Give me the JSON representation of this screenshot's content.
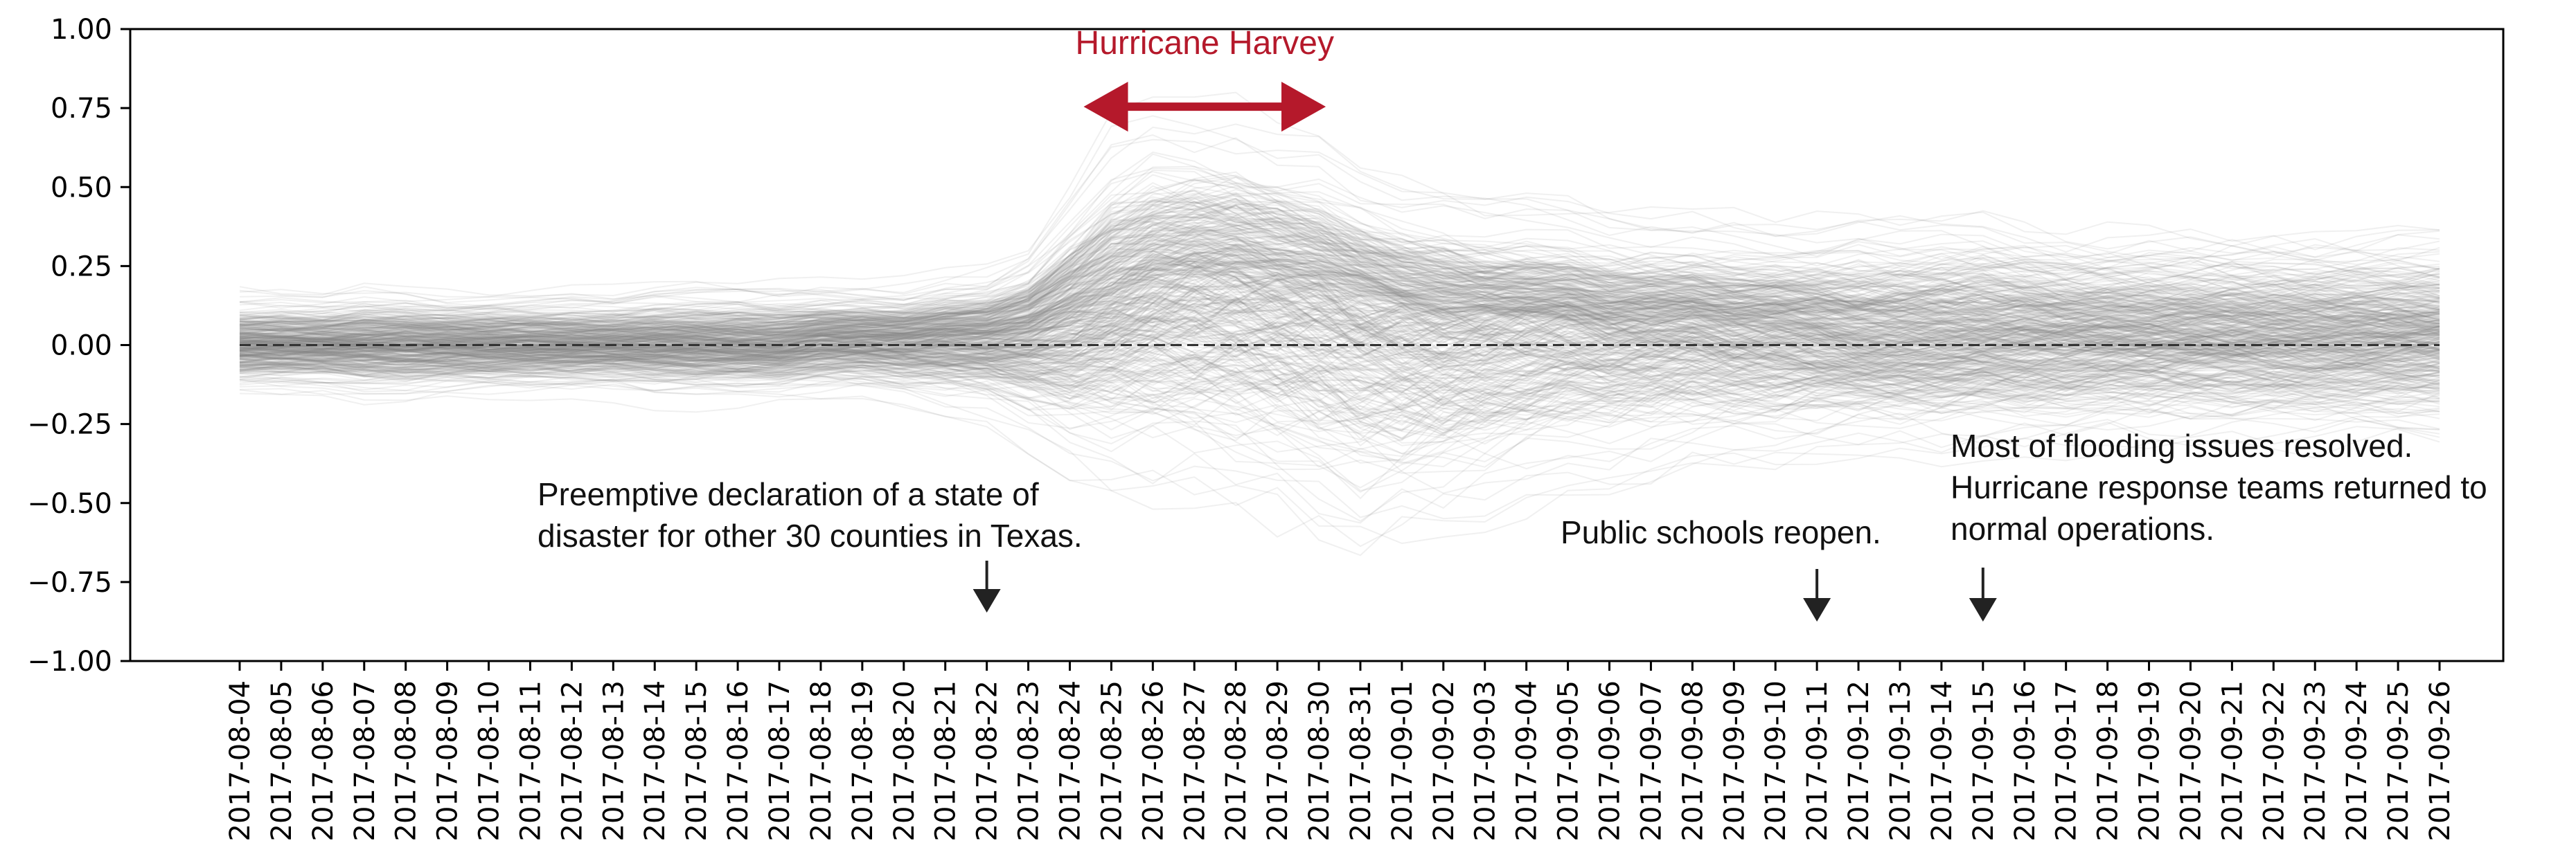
{
  "chart_data": {
    "type": "line",
    "title": "",
    "xlabel": "",
    "ylabel": "",
    "ylim": [
      -1.0,
      1.0
    ],
    "yticks": [
      "1.00",
      "0.75",
      "0.50",
      "0.25",
      "0.00",
      "−0.25",
      "−0.50",
      "−0.75",
      "−1.00"
    ],
    "ytick_values": [
      1.0,
      0.75,
      0.5,
      0.25,
      0.0,
      -0.25,
      -0.5,
      -0.75,
      -1.0
    ],
    "x": [
      "2017-08-04",
      "2017-08-05",
      "2017-08-06",
      "2017-08-07",
      "2017-08-08",
      "2017-08-09",
      "2017-08-10",
      "2017-08-11",
      "2017-08-12",
      "2017-08-13",
      "2017-08-14",
      "2017-08-15",
      "2017-08-16",
      "2017-08-17",
      "2017-08-18",
      "2017-08-19",
      "2017-08-20",
      "2017-08-21",
      "2017-08-22",
      "2017-08-23",
      "2017-08-24",
      "2017-08-25",
      "2017-08-26",
      "2017-08-27",
      "2017-08-28",
      "2017-08-29",
      "2017-08-30",
      "2017-08-31",
      "2017-09-01",
      "2017-09-02",
      "2017-09-03",
      "2017-09-04",
      "2017-09-05",
      "2017-09-06",
      "2017-09-07",
      "2017-09-08",
      "2017-09-09",
      "2017-09-10",
      "2017-09-11",
      "2017-09-12",
      "2017-09-13",
      "2017-09-14",
      "2017-09-15",
      "2017-09-16",
      "2017-09-17",
      "2017-09-18",
      "2017-09-19",
      "2017-09-20",
      "2017-09-21",
      "2017-09-22",
      "2017-09-23",
      "2017-09-24",
      "2017-09-25",
      "2017-09-26"
    ],
    "grid": false,
    "baseline": {
      "y": 0.0,
      "style": "dashed",
      "color": "#333333"
    },
    "series_style": {
      "color": "#808080",
      "opacity": 0.12
    },
    "envelope": {
      "upper": [
        0.2,
        0.2,
        0.2,
        0.22,
        0.22,
        0.2,
        0.2,
        0.2,
        0.2,
        0.2,
        0.22,
        0.22,
        0.22,
        0.22,
        0.22,
        0.22,
        0.22,
        0.25,
        0.27,
        0.35,
        0.55,
        0.75,
        0.82,
        0.82,
        0.8,
        0.75,
        0.7,
        0.6,
        0.55,
        0.55,
        0.5,
        0.5,
        0.48,
        0.45,
        0.45,
        0.45,
        0.45,
        0.45,
        0.45,
        0.48,
        0.48,
        0.5,
        0.5,
        0.48,
        0.45,
        0.45,
        0.45,
        0.45,
        0.45,
        0.45,
        0.45,
        0.45,
        0.45,
        0.45
      ],
      "lower": [
        -0.2,
        -0.2,
        -0.2,
        -0.22,
        -0.22,
        -0.2,
        -0.2,
        -0.2,
        -0.2,
        -0.2,
        -0.22,
        -0.22,
        -0.22,
        -0.22,
        -0.22,
        -0.22,
        -0.25,
        -0.28,
        -0.3,
        -0.4,
        -0.55,
        -0.65,
        -0.7,
        -0.72,
        -0.75,
        -0.8,
        -0.85,
        -0.9,
        -0.85,
        -0.8,
        -0.75,
        -0.7,
        -0.62,
        -0.58,
        -0.55,
        -0.52,
        -0.5,
        -0.5,
        -0.48,
        -0.45,
        -0.45,
        -0.45,
        -0.42,
        -0.42,
        -0.42,
        -0.4,
        -0.4,
        -0.4,
        -0.4,
        -0.4,
        -0.4,
        -0.4,
        -0.4,
        -0.4
      ],
      "center": [
        0,
        0,
        0,
        0,
        0,
        0,
        0,
        0,
        0,
        0,
        0,
        0,
        0,
        0,
        0.02,
        0.02,
        0.02,
        0.03,
        0.03,
        0.05,
        0.1,
        0.15,
        0.2,
        0.22,
        0.22,
        0.2,
        0.18,
        0.15,
        0.12,
        0.1,
        0.1,
        0.1,
        0.1,
        0.08,
        0.08,
        0.08,
        0.06,
        0.06,
        0.05,
        0.03,
        0.03,
        0.03,
        0.03,
        0.03,
        0.03,
        0.03,
        0.03,
        0.03,
        0.03,
        0.03,
        0.03,
        0.03,
        0.03,
        0.03
      ]
    },
    "annotations": [
      {
        "text_lines": [
          "Hurricane Harvey"
        ],
        "style": "title",
        "span": [
          "2017-08-24",
          "2017-08-30"
        ],
        "y": 0.75
      },
      {
        "text_lines": [
          "Preemptive declaration of a state of",
          "disaster for other 30 counties in Texas."
        ],
        "arrow_at": "2017-08-22"
      },
      {
        "text_lines": [
          "Public schools reopen."
        ],
        "arrow_at": "2017-09-11"
      },
      {
        "text_lines": [
          "Most of flooding issues resolved.",
          "Hurricane response teams returned to",
          "normal operations."
        ],
        "arrow_at": "2017-09-15"
      }
    ],
    "colors": {
      "accent": "#b5192b",
      "lines": "#808080",
      "arrow": "#222222"
    }
  }
}
